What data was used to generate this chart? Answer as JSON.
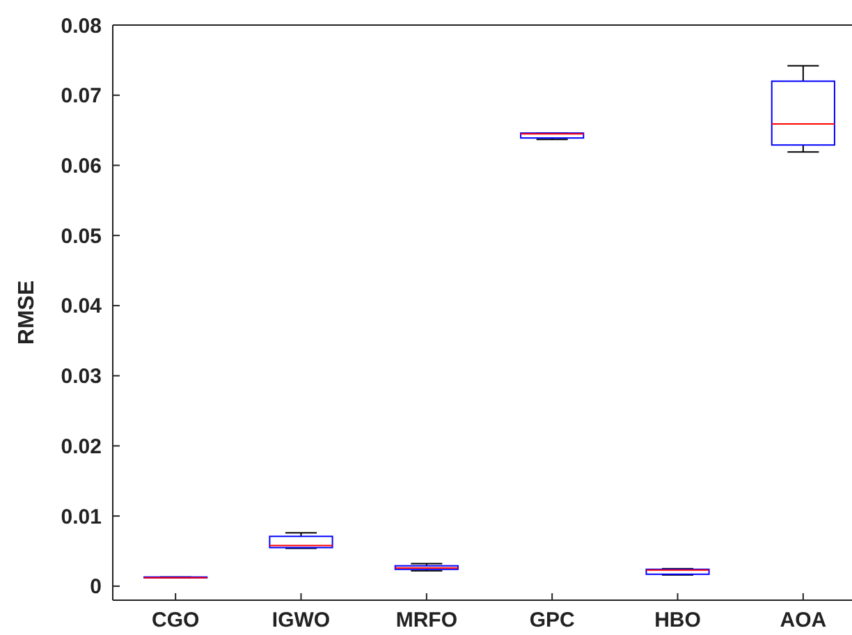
{
  "chart_data": {
    "type": "box",
    "ylabel": "RMSE",
    "categories": [
      "CGO",
      "IGWO",
      "MRFO",
      "GPC",
      "HBO",
      "AOA"
    ],
    "boxes": [
      {
        "low": 0.0012,
        "q1": 0.0012,
        "median": 0.0012,
        "q3": 0.0013,
        "high": 0.0013
      },
      {
        "low": 0.0054,
        "q1": 0.0055,
        "median": 0.0058,
        "q3": 0.0071,
        "high": 0.0076
      },
      {
        "low": 0.0022,
        "q1": 0.0024,
        "median": 0.0026,
        "q3": 0.0029,
        "high": 0.0032
      },
      {
        "low": 0.0637,
        "q1": 0.0639,
        "median": 0.0645,
        "q3": 0.0646,
        "high": 0.0646
      },
      {
        "low": 0.0016,
        "q1": 0.0017,
        "median": 0.0023,
        "q3": 0.0024,
        "high": 0.0025
      },
      {
        "low": 0.0619,
        "q1": 0.0629,
        "median": 0.0659,
        "q3": 0.072,
        "high": 0.0742
      }
    ],
    "color": "#0000ff",
    "ylim": [
      -0.002,
      0.08
    ],
    "yticks": [
      0,
      0.01,
      0.02,
      0.03,
      0.04,
      0.05,
      0.06,
      0.07,
      0.08
    ],
    "grid": false
  }
}
